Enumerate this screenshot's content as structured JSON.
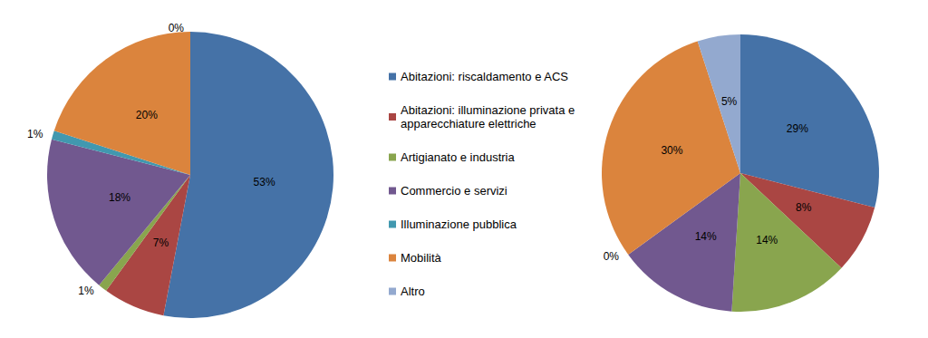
{
  "chart_data": [
    {
      "type": "pie",
      "categories": [
        "Abitazioni: riscaldamento e ACS",
        "Abitazioni: illuminazione privata e apparecchiature elettriche",
        "Artigianato e industria",
        "Commercio e servizi",
        "Illuminazione pubblica",
        "Mobilità",
        "Altro"
      ],
      "values": [
        53,
        7,
        1,
        18,
        1,
        20,
        0
      ],
      "value_labels": [
        "53%",
        "7%",
        "1%",
        "18%",
        "1%",
        "20%",
        "0%"
      ],
      "colors": [
        "#4572a7",
        "#aa4643",
        "#89a54e",
        "#71588f",
        "#4198af",
        "#db843d",
        "#93a9cf"
      ],
      "data_labels": true,
      "legend": "right"
    },
    {
      "type": "pie",
      "categories": [
        "Abitazioni: riscaldamento e ACS",
        "Abitazioni: illuminazione privata e apparecchiature elettriche",
        "Artigianato e industria",
        "Commercio e servizi",
        "Illuminazione pubblica",
        "Mobilità",
        "Altro"
      ],
      "values": [
        29,
        8,
        14,
        14,
        0,
        30,
        5
      ],
      "value_labels": [
        "29%",
        "8%",
        "14%",
        "14%",
        "0%",
        "30%",
        "5%"
      ],
      "colors": [
        "#4572a7",
        "#aa4643",
        "#89a54e",
        "#71588f",
        "#4198af",
        "#db843d",
        "#93a9cf"
      ],
      "data_labels": true
    }
  ]
}
